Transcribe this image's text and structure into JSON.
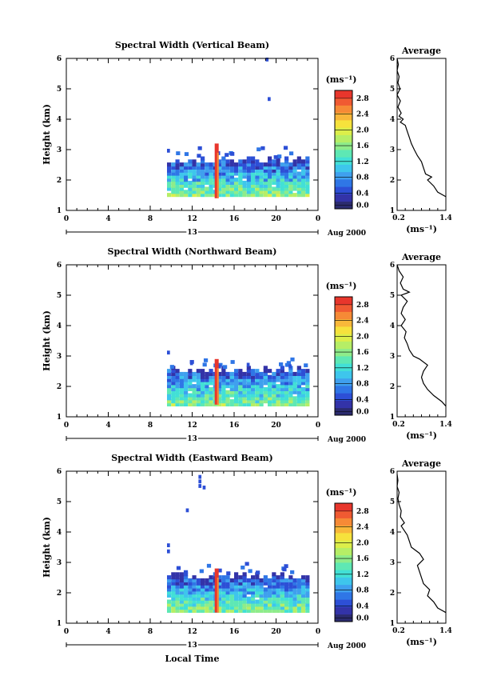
{
  "chart_data": [
    {
      "type": "heatmap",
      "title": "Spectral Width (Vertical Beam)",
      "ylabel": "Height (km)",
      "xlim": [
        0,
        24
      ],
      "ylim": [
        1,
        6
      ],
      "x_ticks": [
        "0",
        "4",
        "8",
        "12",
        "16",
        "20",
        "0"
      ],
      "y_ticks": [
        "1",
        "2",
        "3",
        "4",
        "5",
        "6"
      ],
      "day_label": "13",
      "month_label": "Aug 2000",
      "colorbar": {
        "unit": "(ms⁻¹)",
        "ticks": [
          "0.0",
          "0.4",
          "0.8",
          "1.2",
          "1.6",
          "2.0",
          "2.4",
          "2.8"
        ],
        "range": [
          0,
          3.0
        ]
      },
      "data_region": {
        "x_start": 9.6,
        "x_end": 23.0,
        "y_bottom": 1.45,
        "y_top": 2.6
      },
      "high_width_spike": {
        "x": 14.3,
        "y_bottom": 1.4,
        "y_top": 3.2,
        "value": 3.0
      },
      "average_profile": {
        "title": "Average",
        "xlabel": "(ms⁻¹)",
        "x_ticks": [
          "0.2",
          "1.4"
        ],
        "xlim": [
          0.2,
          1.4
        ],
        "height": [
          1.45,
          1.6,
          1.8,
          2.0,
          2.1,
          2.2,
          2.4,
          2.6,
          2.8,
          3.0,
          3.2,
          3.4,
          3.6,
          3.8,
          3.9,
          4.0,
          4.1,
          4.2,
          4.4,
          4.6,
          4.8,
          5.0,
          5.2,
          5.4,
          5.6,
          5.8,
          6.0
        ],
        "width": [
          1.4,
          1.2,
          1.1,
          0.95,
          1.05,
          0.9,
          0.85,
          0.8,
          0.7,
          0.62,
          0.55,
          0.5,
          0.45,
          0.4,
          0.28,
          0.35,
          0.25,
          0.3,
          0.22,
          0.28,
          0.2,
          0.27,
          0.22,
          0.25,
          0.2,
          0.23,
          0.2
        ]
      }
    },
    {
      "type": "heatmap",
      "title": "Spectral Width (Northward Beam)",
      "ylabel": "Height (km)",
      "xlim": [
        0,
        24
      ],
      "ylim": [
        1,
        6
      ],
      "x_ticks": [
        "0",
        "4",
        "8",
        "12",
        "16",
        "20",
        "0"
      ],
      "y_ticks": [
        "1",
        "2",
        "3",
        "4",
        "5",
        "6"
      ],
      "day_label": "13",
      "month_label": "Aug 2000",
      "colorbar": {
        "unit": "(ms⁻¹)",
        "ticks": [
          "0.0",
          "0.4",
          "0.8",
          "1.2",
          "1.6",
          "2.0",
          "2.4",
          "2.8"
        ],
        "range": [
          0,
          3.0
        ]
      },
      "data_region": {
        "x_start": 9.6,
        "x_end": 23.0,
        "y_bottom": 1.35,
        "y_top": 2.5
      },
      "high_width_spike": {
        "x": 14.3,
        "y_bottom": 1.4,
        "y_top": 2.9,
        "value": 3.0
      },
      "average_profile": {
        "title": "Average",
        "xlabel": "(ms⁻¹)",
        "x_ticks": [
          "0.2",
          "1.4"
        ],
        "xlim": [
          0.2,
          1.4
        ],
        "height": [
          1.35,
          1.5,
          1.7,
          1.9,
          2.1,
          2.3,
          2.5,
          2.7,
          2.9,
          3.0,
          3.2,
          3.4,
          3.6,
          3.8,
          4.0,
          4.2,
          4.4,
          4.6,
          4.8,
          5.0,
          5.1,
          5.2,
          5.4,
          5.6,
          5.8,
          6.0
        ],
        "width": [
          1.4,
          1.3,
          1.1,
          0.95,
          0.85,
          0.8,
          0.85,
          0.95,
          0.75,
          0.6,
          0.5,
          0.45,
          0.38,
          0.42,
          0.3,
          0.4,
          0.3,
          0.35,
          0.45,
          0.3,
          0.5,
          0.35,
          0.28,
          0.35,
          0.25,
          0.2
        ]
      }
    },
    {
      "type": "heatmap",
      "title": "Spectral Width (Eastward Beam)",
      "xlabel": "Local Time",
      "ylabel": "Height (km)",
      "xlim": [
        0,
        24
      ],
      "ylim": [
        1,
        6
      ],
      "x_ticks": [
        "0",
        "4",
        "8",
        "12",
        "16",
        "20",
        "0"
      ],
      "y_ticks": [
        "1",
        "2",
        "3",
        "4",
        "5",
        "6"
      ],
      "day_label": "13",
      "month_label": "Aug 2000",
      "colorbar": {
        "unit": "(ms⁻¹)",
        "ticks": [
          "0.0",
          "0.4",
          "0.8",
          "1.2",
          "1.6",
          "2.0",
          "2.4",
          "2.8"
        ],
        "range": [
          0,
          3.0
        ]
      },
      "data_region": {
        "x_start": 9.6,
        "x_end": 23.0,
        "y_bottom": 1.35,
        "y_top": 2.5
      },
      "high_width_spike": {
        "x": 14.3,
        "y_bottom": 1.35,
        "y_top": 2.8,
        "value": 3.0
      },
      "average_profile": {
        "title": "Average",
        "xlabel": "(ms⁻¹)",
        "x_ticks": [
          "0.2",
          "1.4"
        ],
        "xlim": [
          0.2,
          1.4
        ],
        "height": [
          1.35,
          1.5,
          1.7,
          1.9,
          2.1,
          2.3,
          2.5,
          2.7,
          2.9,
          3.1,
          3.3,
          3.5,
          3.7,
          3.9,
          4.1,
          4.2,
          4.3,
          4.5,
          4.7,
          4.9,
          5.1,
          5.3,
          5.5,
          5.7,
          5.9
        ],
        "width": [
          1.4,
          1.2,
          1.1,
          0.95,
          1.0,
          0.85,
          0.8,
          0.75,
          0.7,
          0.85,
          0.75,
          0.55,
          0.5,
          0.45,
          0.35,
          0.3,
          0.38,
          0.28,
          0.3,
          0.25,
          0.22,
          0.25,
          0.2,
          0.22,
          0.2
        ]
      }
    }
  ],
  "colormap": [
    "#2b2b6e",
    "#3333a8",
    "#2d4fd6",
    "#2f76e6",
    "#3fa0ee",
    "#3ec6ec",
    "#42e0d6",
    "#5ee8b4",
    "#8eec8a",
    "#b6ee66",
    "#dcee4a",
    "#f6e23c",
    "#f8b83a",
    "#f68a36",
    "#f05a32",
    "#e8362c"
  ]
}
